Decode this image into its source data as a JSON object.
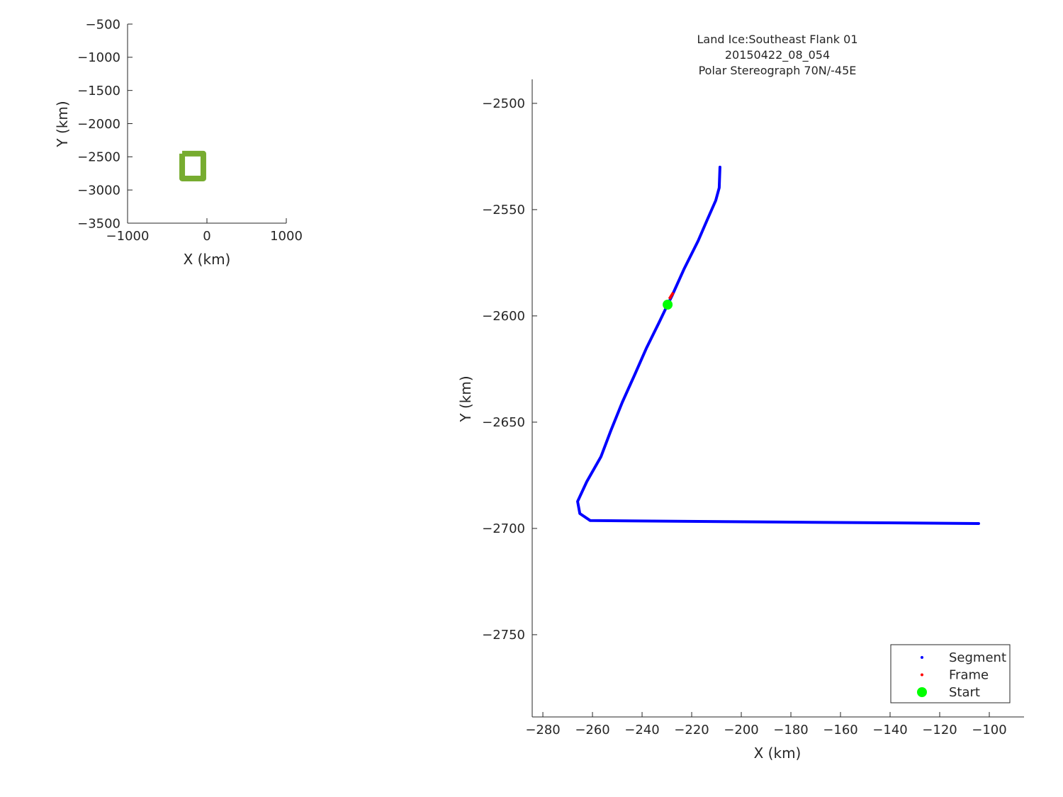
{
  "chart_data": [
    {
      "type": "line",
      "xlabel": "X (km)",
      "ylabel": "Y (km)",
      "xlim": [
        -1000,
        1000
      ],
      "ylim": [
        -3500,
        -500
      ],
      "xticks": [
        -1000,
        0,
        1000
      ],
      "yticks": [
        -500,
        -1000,
        -1500,
        -2000,
        -2500,
        -3000,
        -3500
      ],
      "grid": false,
      "colors": {
        "outline": "#77ac30"
      },
      "outline": {
        "x": [
          -312,
          -45,
          -45,
          -312,
          -312
        ],
        "y": [
          -2453,
          -2453,
          -2827,
          -2827,
          -2453
        ]
      }
    },
    {
      "type": "scatter",
      "title": [
        "Land Ice:Southeast Flank 01",
        "20150422_08_054",
        "Polar Stereograph 70N/-45E"
      ],
      "xlabel": "X (km)",
      "ylabel": "Y (km)",
      "xlim": [
        -284.3,
        -86
      ],
      "ylim": [
        -2788.7,
        -2488.7
      ],
      "xticks": [
        -280,
        -260,
        -240,
        -220,
        -200,
        -180,
        -160,
        -140,
        -120,
        -100
      ],
      "yticks": [
        -2500,
        -2550,
        -2600,
        -2650,
        -2700,
        -2750
      ],
      "grid": false,
      "legend": "bottom-right",
      "series": [
        {
          "name": "Segment",
          "color": "#0000ff",
          "x": [
            -208.6,
            -208.9,
            -210.3,
            -213.7,
            -217.4,
            -223.1,
            -228.0,
            -229.7,
            -233.1,
            -238.3,
            -243.1,
            -248.0,
            -252.6,
            -256.6,
            -262.3,
            -266.0,
            -265.1,
            -260.9,
            -184.6,
            -104.3
          ],
          "y": [
            -2530,
            -2539.7,
            -2545.7,
            -2554.7,
            -2564.7,
            -2578,
            -2590.7,
            -2594.7,
            -2603,
            -2615.3,
            -2628,
            -2640.7,
            -2654,
            -2666.3,
            -2678,
            -2687.3,
            -2693,
            -2696.3,
            -2697,
            -2697.7
          ]
        },
        {
          "name": "Frame",
          "color": "#ff0000",
          "x": [
            -229.0,
            -227.4
          ],
          "y": [
            -2592,
            -2589
          ]
        },
        {
          "name": "Start",
          "color": "#00ff00",
          "x": [
            -229.7
          ],
          "y": [
            -2594.7
          ]
        }
      ]
    }
  ]
}
